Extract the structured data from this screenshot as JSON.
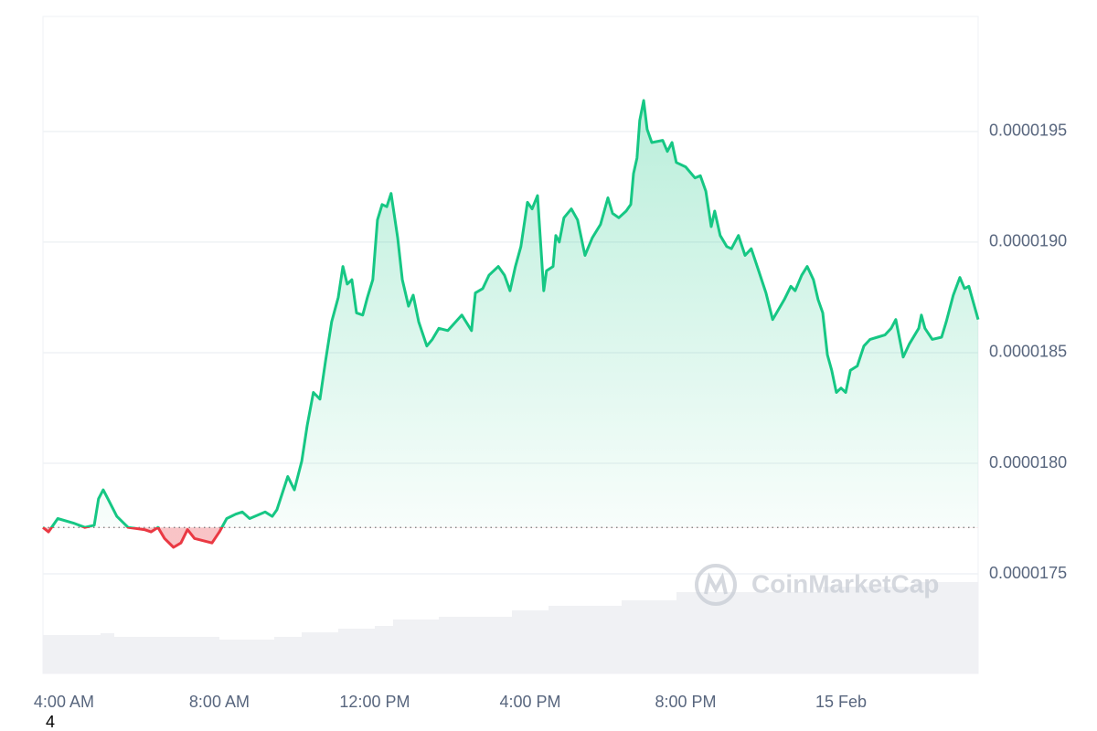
{
  "chart_data": {
    "type": "line",
    "x": [
      3.46,
      3.6,
      3.84,
      4.24,
      4.54,
      4.78,
      4.89,
      5.01,
      5.13,
      5.36,
      5.65,
      6.07,
      6.24,
      6.42,
      6.59,
      6.82,
      7.01,
      7.18,
      7.36,
      7.81,
      8.0,
      8.19,
      8.42,
      8.59,
      8.78,
      9.18,
      9.36,
      9.48,
      9.76,
      9.93,
      10.12,
      10.26,
      10.42,
      10.59,
      10.73,
      10.89,
      11.06,
      11.18,
      11.29,
      11.41,
      11.53,
      11.69,
      11.81,
      11.95,
      12.07,
      12.19,
      12.31,
      12.42,
      12.59,
      12.71,
      12.87,
      12.99,
      13.13,
      13.34,
      13.48,
      13.65,
      13.88,
      14.24,
      14.49,
      14.59,
      14.78,
      14.94,
      15.18,
      15.34,
      15.48,
      15.62,
      15.76,
      15.93,
      16.05,
      16.19,
      16.35,
      16.42,
      16.59,
      16.66,
      16.75,
      16.87,
      17.06,
      17.22,
      17.41,
      17.6,
      17.81,
      18.0,
      18.12,
      18.28,
      18.47,
      18.59,
      18.66,
      18.75,
      18.82,
      18.92,
      19.01,
      19.13,
      19.41,
      19.53,
      19.65,
      19.76,
      20.0,
      20.24,
      20.38,
      20.52,
      20.66,
      20.75,
      20.89,
      21.06,
      21.18,
      21.36,
      21.53,
      21.69,
      21.88,
      22.07,
      22.24,
      22.54,
      22.71,
      22.82,
      22.99,
      23.13,
      23.29,
      23.41,
      23.53,
      23.65,
      23.76,
      23.88,
      24.0,
      24.12,
      24.24,
      24.42,
      24.59,
      24.75,
      24.94,
      25.13,
      25.29,
      25.41,
      25.6,
      25.76,
      26.0,
      26.07,
      26.16,
      26.35,
      26.59,
      26.71,
      26.89,
      27.06,
      27.18,
      27.29,
      27.53
    ],
    "values": [
      1.771e-05,
      1.769e-05,
      1.775e-05,
      1.773e-05,
      1.771e-05,
      1.772e-05,
      1.784e-05,
      1.788e-05,
      1.784e-05,
      1.776e-05,
      1.771e-05,
      1.77e-05,
      1.769e-05,
      1.771e-05,
      1.766e-05,
      1.762e-05,
      1.764e-05,
      1.77e-05,
      1.766e-05,
      1.764e-05,
      1.769e-05,
      1.775e-05,
      1.777e-05,
      1.778e-05,
      1.775e-05,
      1.778e-05,
      1.776e-05,
      1.779e-05,
      1.794e-05,
      1.788e-05,
      1.801e-05,
      1.817e-05,
      1.832e-05,
      1.829e-05,
      1.846e-05,
      1.864e-05,
      1.875e-05,
      1.889e-05,
      1.881e-05,
      1.883e-05,
      1.868e-05,
      1.867e-05,
      1.875e-05,
      1.883e-05,
      1.91e-05,
      1.917e-05,
      1.916e-05,
      1.922e-05,
      1.902e-05,
      1.883e-05,
      1.871e-05,
      1.876e-05,
      1.864e-05,
      1.853e-05,
      1.856e-05,
      1.861e-05,
      1.86e-05,
      1.867e-05,
      1.86e-05,
      1.877e-05,
      1.879e-05,
      1.885e-05,
      1.889e-05,
      1.885e-05,
      1.878e-05,
      1.889e-05,
      1.898e-05,
      1.918e-05,
      1.915e-05,
      1.921e-05,
      1.878e-05,
      1.887e-05,
      1.889e-05,
      1.903e-05,
      1.9e-05,
      1.911e-05,
      1.915e-05,
      1.91e-05,
      1.894e-05,
      1.902e-05,
      1.908e-05,
      1.92e-05,
      1.913e-05,
      1.911e-05,
      1.914e-05,
      1.917e-05,
      1.931e-05,
      1.938e-05,
      1.955e-05,
      1.964e-05,
      1.951e-05,
      1.945e-05,
      1.946e-05,
      1.941e-05,
      1.945e-05,
      1.936e-05,
      1.934e-05,
      1.929e-05,
      1.93e-05,
      1.923e-05,
      1.907e-05,
      1.914e-05,
      1.903e-05,
      1.898e-05,
      1.897e-05,
      1.903e-05,
      1.894e-05,
      1.897e-05,
      1.887e-05,
      1.877e-05,
      1.865e-05,
      1.874e-05,
      1.88e-05,
      1.878e-05,
      1.885e-05,
      1.889e-05,
      1.883e-05,
      1.874e-05,
      1.868e-05,
      1.849e-05,
      1.842e-05,
      1.832e-05,
      1.834e-05,
      1.832e-05,
      1.842e-05,
      1.844e-05,
      1.853e-05,
      1.856e-05,
      1.857e-05,
      1.858e-05,
      1.861e-05,
      1.865e-05,
      1.848e-05,
      1.854e-05,
      1.861e-05,
      1.867e-05,
      1.861e-05,
      1.856e-05,
      1.857e-05,
      1.864e-05,
      1.876e-05,
      1.884e-05,
      1.879e-05,
      1.88e-05,
      1.865e-05
    ],
    "baseline": 1.771e-05,
    "color": "#16c784",
    "down_color": "#ea3943",
    "xlim": [
      3.46,
      27.53
    ],
    "xticks": [
      {
        "value": 4,
        "label": "4:00 AM"
      },
      {
        "value": 8,
        "label": "8:00 AM"
      },
      {
        "value": 12,
        "label": "12:00 PM"
      },
      {
        "value": 16,
        "label": "4:00 PM"
      },
      {
        "value": 20,
        "label": "8:00 PM"
      },
      {
        "value": 24,
        "label": "15 Feb"
      }
    ],
    "ylim": [
      1.705e-05,
      2.002e-05
    ],
    "yticks": [
      1.75e-05,
      {
        "value": 1.8e-05,
        "label": "0.0000180"
      },
      1.85e-05,
      {
        "value": 1.9e-05,
        "label": "0.0000190"
      },
      1.95e-05
    ],
    "grid": true,
    "watermark": "CoinMarketCap",
    "footer_text": "4"
  }
}
